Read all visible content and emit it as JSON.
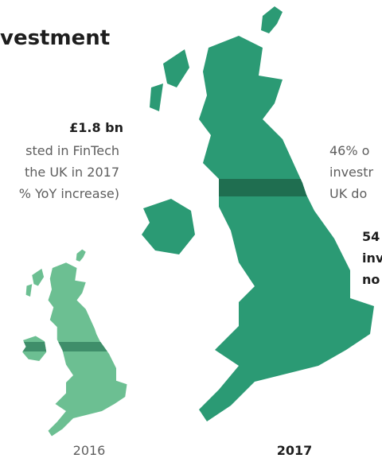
{
  "header": {
    "title": "vestment"
  },
  "left_note": {
    "value": "£1.8 bn",
    "lines": [
      "sted in FinTech",
      "the UK in 2017",
      "% YoY increase)"
    ]
  },
  "right_note": {
    "lines": [
      "46% o",
      "investr",
      "UK do"
    ]
  },
  "right_note_2": {
    "lines": [
      "54",
      "inv",
      "no"
    ]
  },
  "maps": {
    "small": {
      "label": "2016"
    },
    "large": {
      "label": "2017"
    }
  }
}
